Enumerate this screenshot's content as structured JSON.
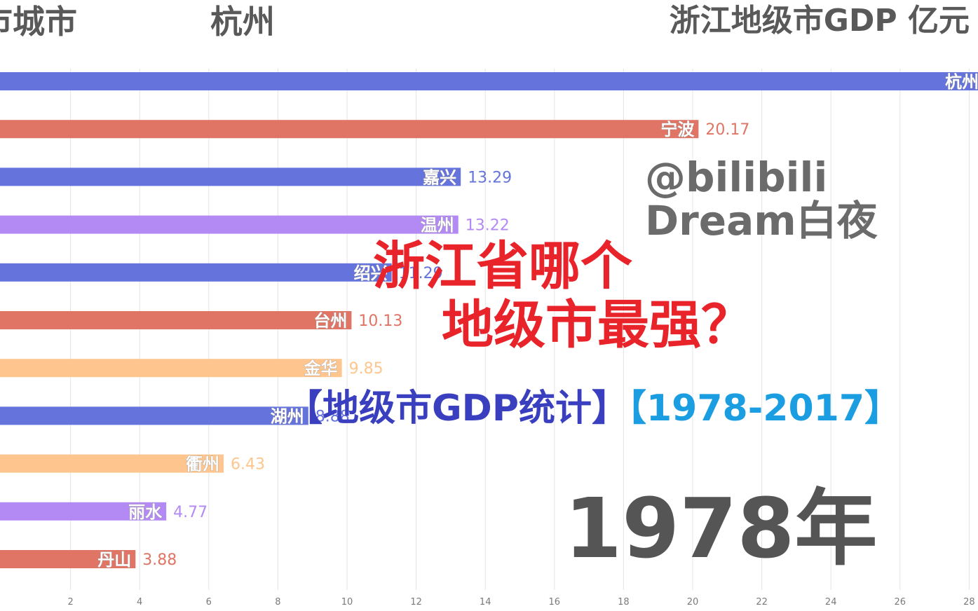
{
  "header": {
    "left": "市城市",
    "leader": "杭州",
    "title": "浙江地级市GDP 亿元"
  },
  "watermark": {
    "line1": "@bilibili",
    "line2": "Dream白夜"
  },
  "headline": {
    "line1": "浙江省哪个",
    "line2": "地级市最强？"
  },
  "subtitle": {
    "part1": "【地级市GDP统计】",
    "part2": "【1978-2017】"
  },
  "year_label": "1978年",
  "colors": {
    "blue": "#6474dc",
    "red": "#e07465",
    "purple": "#b38af4",
    "orange": "#fec68e"
  },
  "chart_data": {
    "type": "bar",
    "orientation": "horizontal",
    "categories": [
      "杭州",
      "宁波",
      "嘉兴",
      "温州",
      "绍兴",
      "台州",
      "金华",
      "湖州",
      "衢州",
      "丽水",
      "丹山"
    ],
    "values": [
      28.4,
      20.17,
      13.29,
      13.22,
      11.29,
      10.13,
      9.85,
      8.88,
      6.43,
      4.77,
      3.88
    ],
    "value_labels": [
      "28.40",
      "20.17",
      "13.29",
      "13.22",
      "11.29",
      "10.13",
      "9.85",
      "8.88",
      "6.43",
      "4.77",
      "3.88"
    ],
    "bar_colors": [
      "blue",
      "red",
      "blue",
      "purple",
      "blue",
      "red",
      "orange",
      "blue",
      "orange",
      "purple",
      "red"
    ],
    "xticks": [
      2,
      4,
      6,
      8,
      10,
      12,
      14,
      16,
      18,
      20,
      22,
      24,
      26,
      28
    ],
    "xlim": [
      2,
      28.7
    ],
    "grid": true,
    "title": "浙江地级市GDP 亿元"
  }
}
